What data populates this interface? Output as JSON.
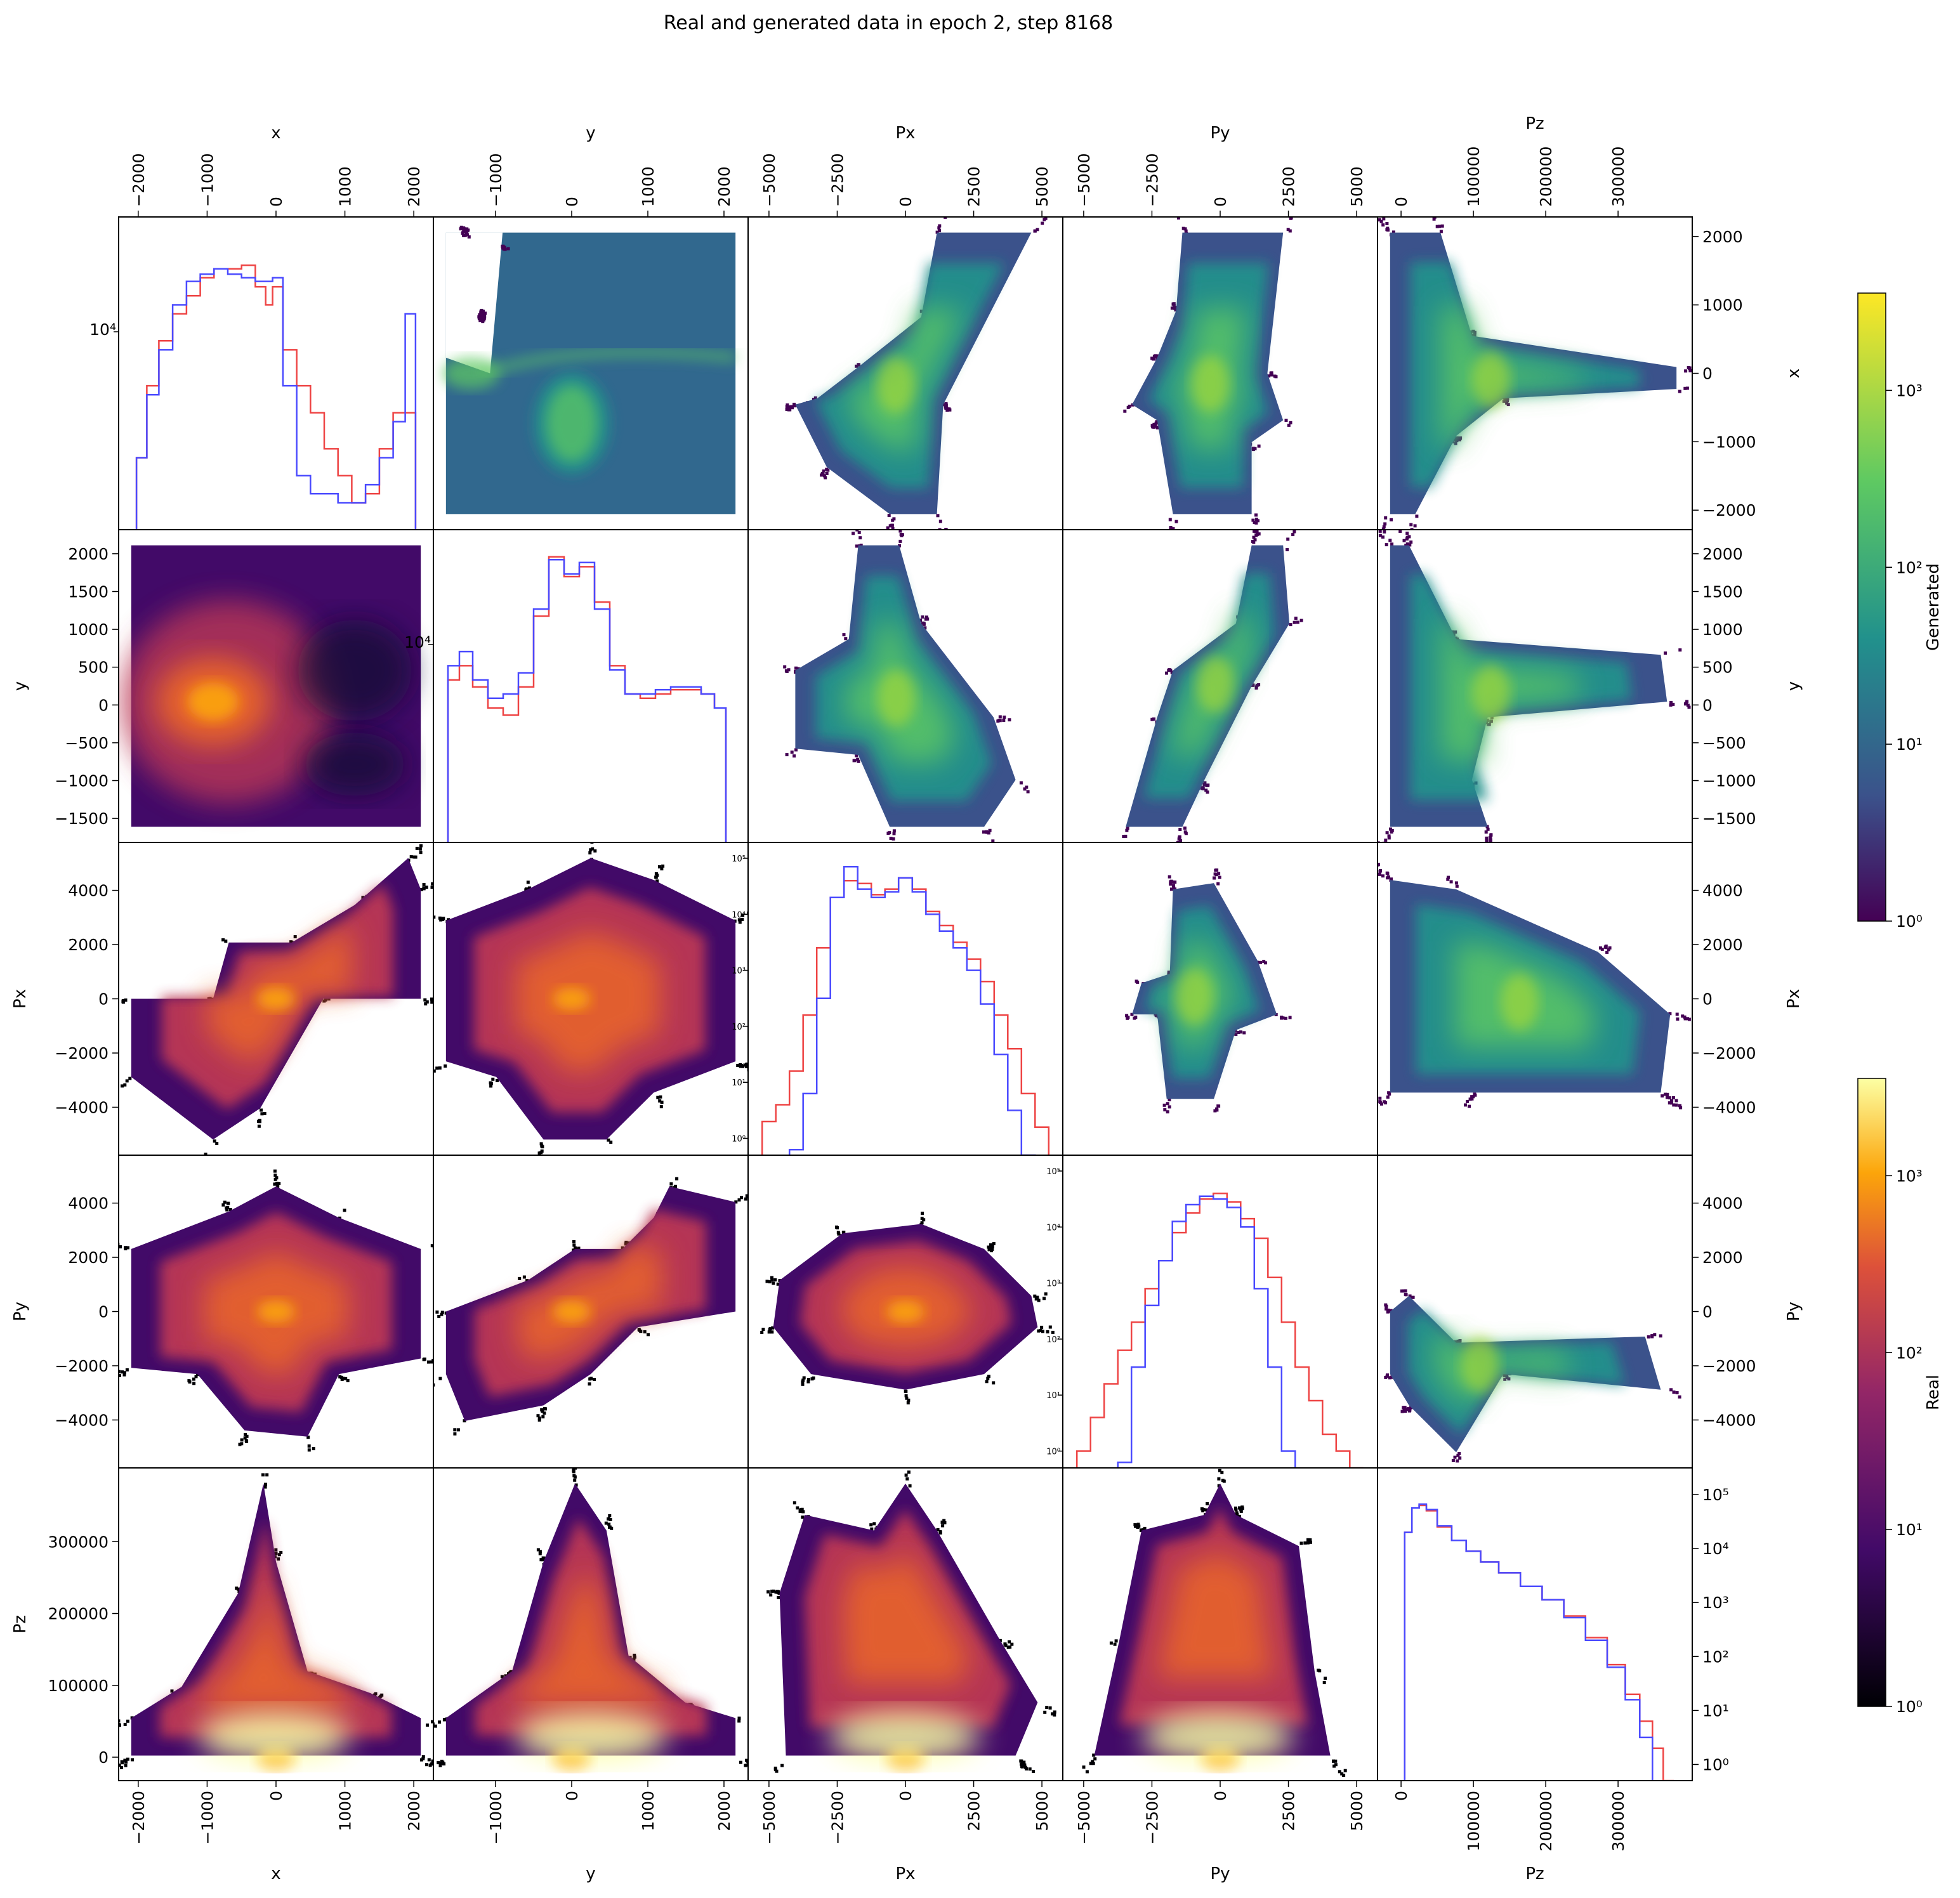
{
  "figure": {
    "title": "Real and generated data in epoch 2, step 8168",
    "variables": [
      "x",
      "y",
      "Px",
      "Py",
      "Pz"
    ]
  },
  "colorbars": {
    "generated": {
      "label": "Generated",
      "colormap": "viridis",
      "scale": "log",
      "ticks": [
        "10⁰",
        "10¹",
        "10²",
        "10³"
      ]
    },
    "real": {
      "label": "Real",
      "colormap": "inferno",
      "scale": "log",
      "ticks": [
        "10⁰",
        "10¹",
        "10²",
        "10³"
      ]
    }
  },
  "legend_colors": {
    "real_hist": "#ee4444",
    "generated_hist": "#4a4aff"
  },
  "chart_data": {
    "type": "pairplot",
    "layout": "upper triangle = generated 2D histograms (viridis), lower triangle = real 2D histograms (inferno), diagonal = 1D histograms (red = real, blue = generated)",
    "axes": {
      "x": {
        "range": [
          -2100,
          2100
        ],
        "ticks": [
          -2000,
          -1000,
          0,
          1000,
          2000
        ],
        "tick_labels": [
          "−2000",
          "−1000",
          "0",
          "1000",
          "2000"
        ]
      },
      "y": {
        "range": [
          -1650,
          2150
        ],
        "ticks": [
          -1000,
          0,
          1000,
          2000
        ],
        "tick_labels": [
          "−1000",
          "0",
          "1000",
          "2000"
        ],
        "row_ticks": [
          -1500,
          -1000,
          -500,
          0,
          500,
          1000,
          1500,
          2000
        ],
        "row_tick_labels": [
          "−1500",
          "−1000",
          "−500",
          "0",
          "500",
          "1000",
          "1500",
          "2000"
        ]
      },
      "Px": {
        "range": [
          -5300,
          5300
        ],
        "ticks": [
          -5000,
          -2500,
          0,
          2500,
          5000
        ],
        "tick_labels": [
          "−5000",
          "−2500",
          "0",
          "2500",
          "5000"
        ],
        "row_ticks": [
          -4000,
          -2000,
          0,
          2000,
          4000
        ],
        "row_tick_labels": [
          "−4000",
          "−2000",
          "0",
          "2000",
          "4000"
        ]
      },
      "Py": {
        "range": [
          -5300,
          5300
        ],
        "ticks": [
          -5000,
          -2500,
          0,
          2500,
          5000
        ],
        "tick_labels": [
          "−5000",
          "−2500",
          "0",
          "2500",
          "5000"
        ],
        "row_ticks": [
          -4000,
          -2000,
          0,
          2000,
          4000
        ],
        "row_tick_labels": [
          "−4000",
          "−2000",
          "0",
          "2000",
          "4000"
        ]
      },
      "Pz": {
        "range": [
          -15000,
          385000
        ],
        "ticks": [
          0,
          100000,
          200000,
          300000
        ],
        "tick_labels": [
          "0",
          "100000",
          "200000",
          "300000"
        ]
      }
    },
    "diagonal_log_ticks": {
      "x": {
        "labels": [
          "10⁴"
        ],
        "exponents": [
          4
        ]
      },
      "y": {
        "labels": [
          "10⁴"
        ],
        "exponents": [
          4
        ]
      },
      "Px": {
        "labels": [
          "10⁰",
          "10¹",
          "10²",
          "10³",
          "10⁴",
          "10⁵"
        ],
        "exponents": [
          0,
          1,
          2,
          3,
          4,
          5
        ]
      },
      "Py": {
        "labels": [
          "10⁰",
          "10¹",
          "10²",
          "10³",
          "10⁴",
          "10⁵"
        ],
        "exponents": [
          0,
          1,
          2,
          3,
          4,
          5
        ]
      },
      "Pz": {
        "labels": [
          "10⁰",
          "10¹",
          "10²",
          "10³",
          "10⁴",
          "10⁵"
        ],
        "exponents": [
          0,
          1,
          2,
          3,
          4,
          5
        ]
      }
    },
    "histograms_1d": {
      "x": {
        "centers": [
          -1950,
          -1800,
          -1600,
          -1400,
          -1200,
          -1000,
          -800,
          -600,
          -400,
          -200,
          -100,
          0,
          200,
          400,
          600,
          800,
          1000,
          1200,
          1400,
          1600,
          1800,
          1950
        ],
        "real": [
          3.3,
          3.7,
          3.95,
          4.1,
          4.2,
          4.3,
          4.35,
          4.35,
          4.37,
          4.25,
          4.15,
          4.25,
          3.9,
          3.7,
          3.55,
          3.35,
          3.2,
          3.05,
          3.1,
          3.35,
          3.55,
          3.55
        ],
        "generated": [
          3.3,
          3.65,
          3.9,
          4.15,
          4.28,
          4.32,
          4.35,
          4.32,
          4.3,
          4.28,
          4.28,
          4.3,
          3.7,
          3.2,
          3.1,
          3.1,
          3.05,
          3.05,
          3.15,
          3.3,
          3.5,
          4.1
        ]
      },
      "y": {
        "centers": [
          -1550,
          -1400,
          -1200,
          -1000,
          -800,
          -600,
          -400,
          -200,
          0,
          200,
          400,
          600,
          800,
          1000,
          1200,
          1400,
          1600,
          1800,
          1950
        ],
        "real": [
          3.75,
          3.85,
          3.7,
          3.55,
          3.5,
          3.7,
          4.2,
          4.62,
          4.48,
          4.55,
          4.3,
          3.85,
          3.65,
          3.62,
          3.65,
          3.68,
          3.68,
          3.65,
          3.55
        ],
        "generated": [
          3.85,
          3.95,
          3.75,
          3.62,
          3.65,
          3.8,
          4.25,
          4.6,
          4.5,
          4.58,
          4.25,
          3.82,
          3.65,
          3.65,
          3.68,
          3.7,
          3.7,
          3.65,
          3.55
        ],
        "log_min": 2.6,
        "log_max": 4.7
      },
      "Px": {
        "centers": [
          -5000,
          -4500,
          -4000,
          -3500,
          -3000,
          -2500,
          -2000,
          -1500,
          -1000,
          -500,
          0,
          500,
          1000,
          1500,
          2000,
          2500,
          3000,
          3500,
          4000,
          4500,
          5000
        ],
        "real": [
          0.3,
          0.6,
          1.2,
          2.2,
          3.4,
          4.3,
          4.6,
          4.55,
          4.35,
          4.45,
          4.65,
          4.45,
          4.05,
          3.8,
          3.5,
          3.2,
          2.8,
          2.2,
          1.6,
          0.8,
          0.2
        ],
        "generated": [
          -0.5,
          -0.5,
          -0.2,
          0.8,
          2.5,
          4.3,
          4.85,
          4.45,
          4.3,
          4.4,
          4.65,
          4.4,
          4.0,
          3.7,
          3.4,
          3.0,
          2.4,
          1.5,
          0.5,
          -0.3,
          -0.5
        ],
        "log_min": -0.3,
        "log_max": 5.0
      },
      "Py": {
        "centers": [
          -5000,
          -4500,
          -4000,
          -3500,
          -3000,
          -2500,
          -2000,
          -1500,
          -1000,
          -500,
          0,
          500,
          1000,
          1500,
          2000,
          2500,
          3000,
          3500,
          4000,
          4500,
          5000
        ],
        "real": [
          0.0,
          0.6,
          1.2,
          1.8,
          2.3,
          2.9,
          3.4,
          3.9,
          4.25,
          4.5,
          4.6,
          4.45,
          4.15,
          3.8,
          3.1,
          2.3,
          1.5,
          0.9,
          0.3,
          0.0,
          -0.3
        ],
        "generated": [
          -0.5,
          -0.5,
          -0.5,
          -0.2,
          1.5,
          2.6,
          3.4,
          4.1,
          4.4,
          4.55,
          4.5,
          4.35,
          4.0,
          2.9,
          1.5,
          0.0,
          -0.5,
          -0.5,
          -0.5,
          -0.5,
          -0.5
        ],
        "log_min": -0.3,
        "log_max": 5.0
      },
      "Pz": {
        "centers": [
          0,
          10000,
          20000,
          30000,
          40000,
          60000,
          80000,
          100000,
          120000,
          150000,
          180000,
          210000,
          240000,
          270000,
          300000,
          320000,
          340000,
          355000,
          370000
        ],
        "real": [
          -0.5,
          4.3,
          4.75,
          4.8,
          4.7,
          4.4,
          4.15,
          3.95,
          3.75,
          3.55,
          3.3,
          3.05,
          2.75,
          2.35,
          1.85,
          1.3,
          0.8,
          0.3,
          -0.3
        ],
        "generated": [
          -0.5,
          4.3,
          4.75,
          4.82,
          4.72,
          4.42,
          4.15,
          3.95,
          3.75,
          3.55,
          3.3,
          3.05,
          2.72,
          2.3,
          1.8,
          1.2,
          0.5,
          -0.4,
          -0.5
        ],
        "log_min": -0.3,
        "log_max": 5.2
      }
    }
  }
}
